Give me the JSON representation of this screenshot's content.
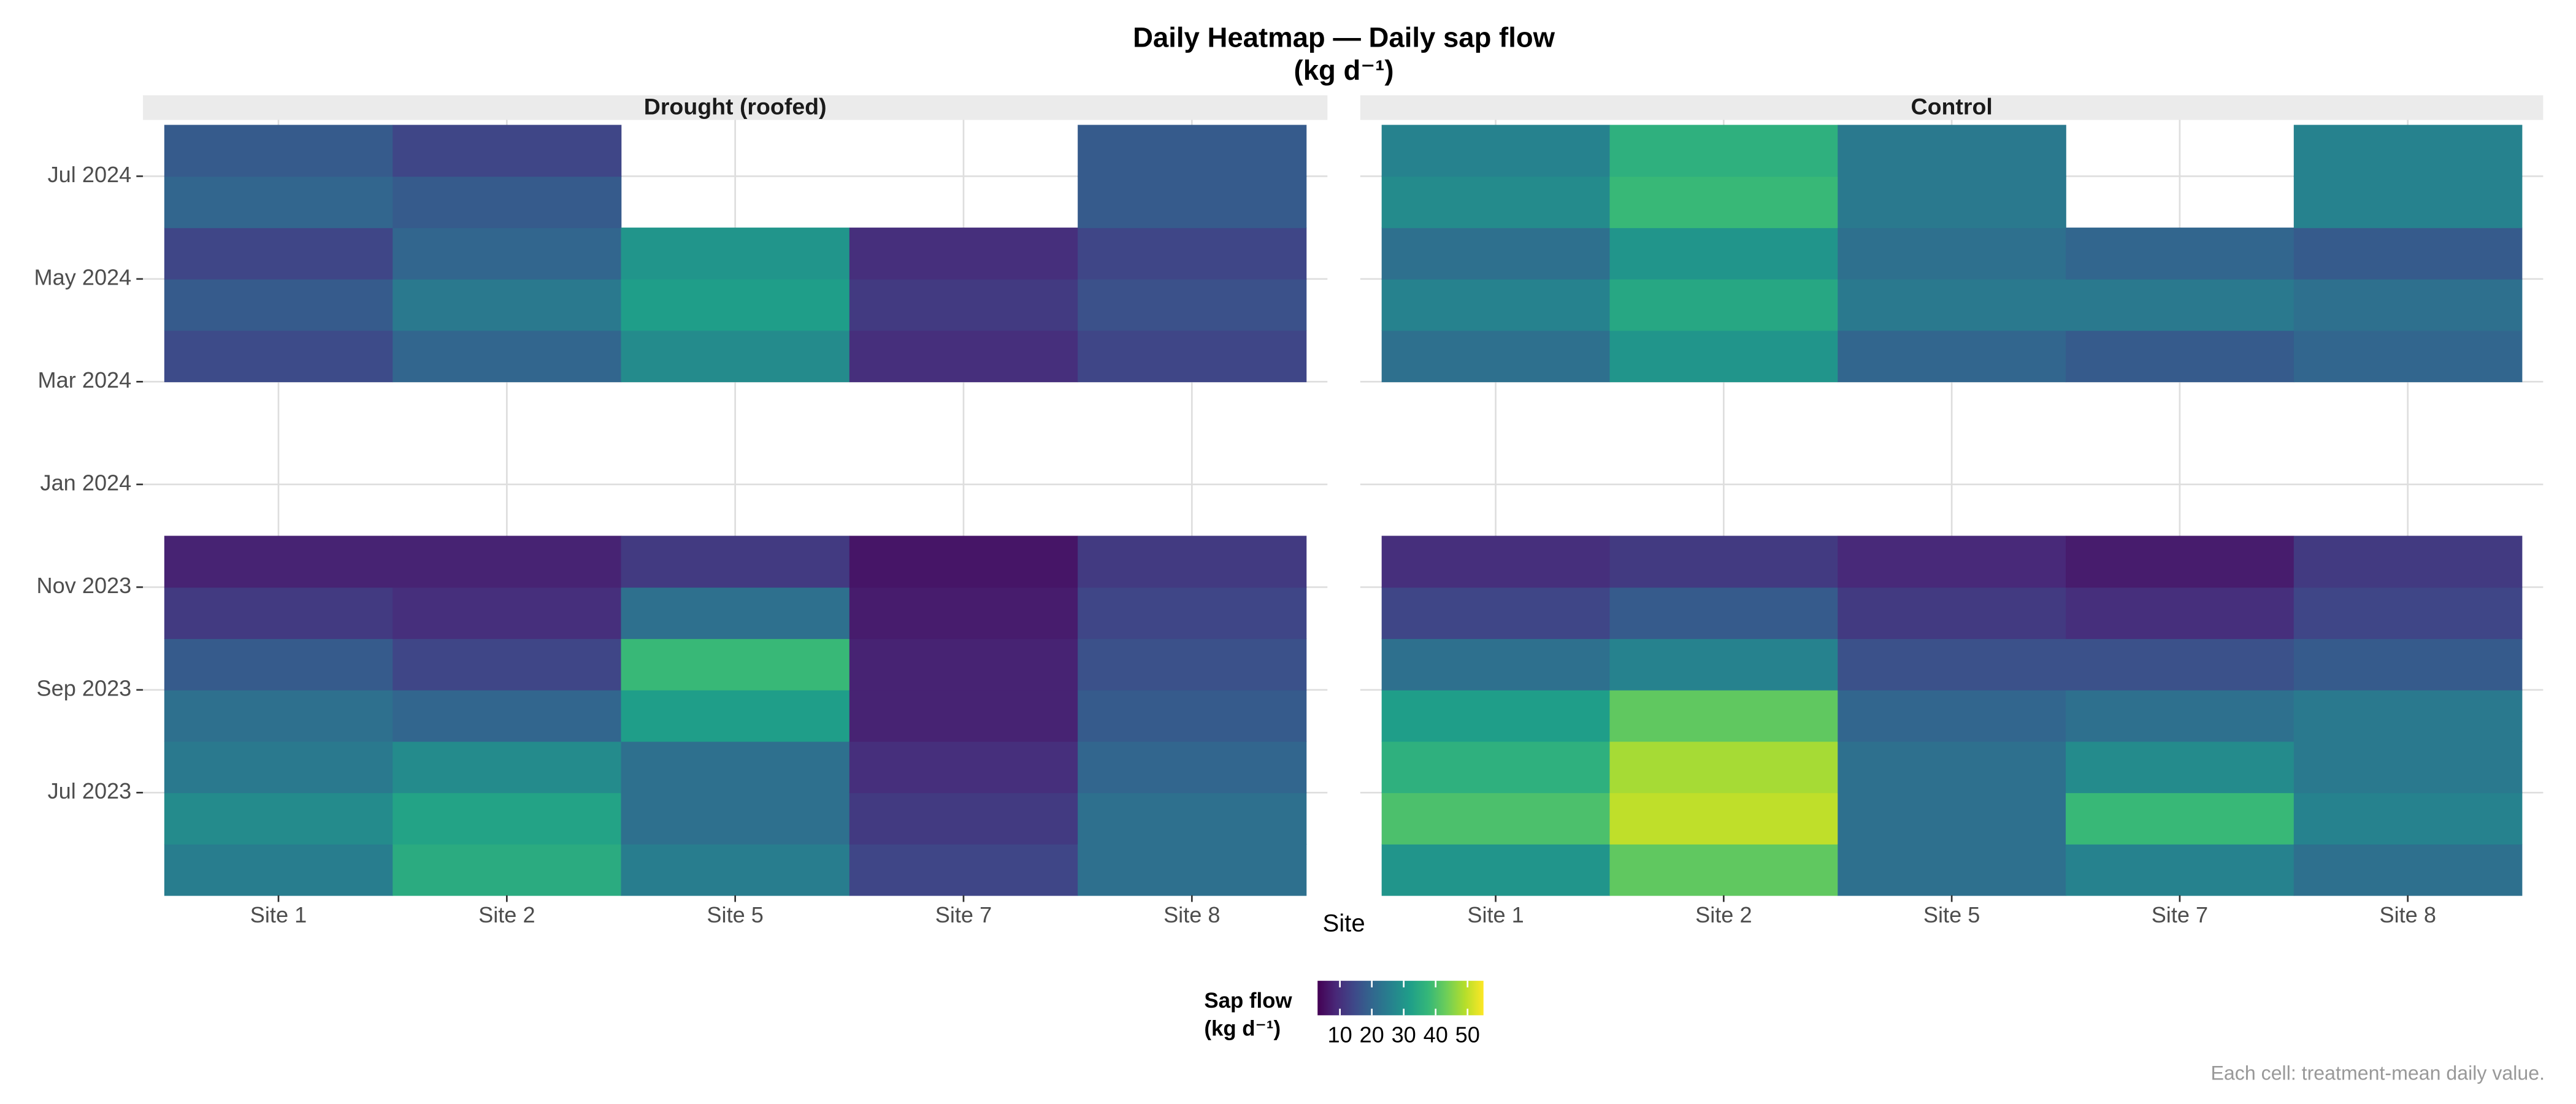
{
  "chart_data": {
    "type": "heatmap",
    "title": "Daily Heatmap — Daily sap flow",
    "subtitle": "(kg d⁻¹)",
    "x_label": "Site",
    "legend_title": [
      "Sap flow",
      "(kg d⁻¹)"
    ],
    "caption": "Each cell: treatment-mean daily value.",
    "categories": [
      "Site 1",
      "Site 2",
      "Site 5",
      "Site 7",
      "Site 8"
    ],
    "y": [
      "2023-05",
      "2023-06",
      "2023-07",
      "2023-08",
      "2023-09",
      "2023-10",
      "2023-11",
      "2024-03",
      "2024-04",
      "2024-05",
      "2024-06",
      "2024-07"
    ],
    "ylim": [
      "2023-05",
      "2024-08"
    ],
    "yticks": [
      {
        "value": "2023-07",
        "label": "Jul 2023"
      },
      {
        "value": "2023-09",
        "label": "Sep 2023"
      },
      {
        "value": "2023-11",
        "label": "Nov 2023"
      },
      {
        "value": "2024-01",
        "label": "Jan 2024"
      },
      {
        "value": "2024-03",
        "label": "Mar 2024"
      },
      {
        "value": "2024-05",
        "label": "May 2024"
      },
      {
        "value": "2024-07",
        "label": "Jul 2024"
      }
    ],
    "grid": true,
    "palette": [
      "#440154",
      "#482878",
      "#3e4989",
      "#31688e",
      "#26828e",
      "#1f9e89",
      "#35b779",
      "#6ece58",
      "#b5de2b",
      "#fde725"
    ],
    "fill_limits": [
      3,
      55
    ],
    "fill_ticks": [
      10,
      20,
      30,
      40,
      50
    ],
    "panels": [
      {
        "title": "Drought (roofed)",
        "series": [
          {
            "name": "Site 1",
            "values": [
              25,
              28,
              24,
              22,
              18,
              12,
              8,
              15,
              18,
              14,
              20,
              18
            ]
          },
          {
            "name": "Site 2",
            "values": [
              35,
              33,
              28,
              20,
              14,
              10,
              8,
              20,
              24,
              20,
              18,
              14
            ]
          },
          {
            "name": "Site 5",
            "values": [
              25,
              22,
              22,
              32,
              38,
              22,
              12,
              28,
              32,
              30,
              null,
              null
            ]
          },
          {
            "name": "Site 7",
            "values": [
              14,
              12,
              10,
              8,
              8,
              7,
              6,
              10,
              12,
              10,
              null,
              null
            ]
          },
          {
            "name": "Site 8",
            "values": [
              22,
              22,
              20,
              18,
              16,
              14,
              12,
              14,
              16,
              14,
              18,
              18
            ]
          }
        ]
      },
      {
        "title": "Control",
        "series": [
          {
            "name": "Site 1",
            "values": [
              30,
              40,
              36,
              32,
              22,
              14,
              10,
              22,
              26,
              22,
              28,
              26
            ]
          },
          {
            "name": "Site 2",
            "values": [
              42,
              50,
              48,
              42,
              26,
              18,
              12,
              30,
              34,
              30,
              38,
              36
            ]
          },
          {
            "name": "Site 5",
            "values": [
              22,
              22,
              22,
              20,
              16,
              12,
              9,
              20,
              24,
              22,
              24,
              24
            ]
          },
          {
            "name": "Site 7",
            "values": [
              26,
              38,
              28,
              22,
              16,
              10,
              7,
              18,
              24,
              20,
              null,
              null
            ]
          },
          {
            "name": "Site 8",
            "values": [
              22,
              26,
              24,
              24,
              18,
              14,
              12,
              20,
              22,
              18,
              26,
              26
            ]
          }
        ]
      }
    ]
  }
}
